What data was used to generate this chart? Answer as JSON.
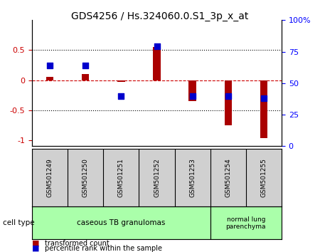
{
  "title": "GDS4256 / Hs.324060.0.S1_3p_x_at",
  "samples": [
    "GSM501249",
    "GSM501250",
    "GSM501251",
    "GSM501252",
    "GSM501253",
    "GSM501254",
    "GSM501255"
  ],
  "transformed_count": [
    0.05,
    0.1,
    -0.03,
    0.55,
    -0.35,
    -0.75,
    -0.97
  ],
  "percentile_rank": [
    0.25,
    0.25,
    -0.25,
    0.55,
    -0.3,
    -0.3,
    -0.35
  ],
  "percentile_rank_pct": [
    62,
    62,
    37,
    78,
    37,
    37,
    35
  ],
  "bar_color": "#aa0000",
  "dot_color": "#0000cc",
  "ylim_left": [
    -1.1,
    1.0
  ],
  "ylim_right": [
    0,
    100
  ],
  "yticks_left": [
    -1,
    -0.5,
    0,
    0.5
  ],
  "yticks_right": [
    0,
    25,
    50,
    75,
    100
  ],
  "ytick_labels_left": [
    "-1",
    "-0.5",
    "0",
    "0.5"
  ],
  "ytick_labels_right": [
    "0",
    "25",
    "50",
    "75",
    "100%"
  ],
  "hlines": [
    0.5,
    0,
    -0.5
  ],
  "cell_type_groups": [
    {
      "label": "caseous TB granulomas",
      "start": 0,
      "end": 5,
      "color": "#aaffaa"
    },
    {
      "label": "normal lung\nparenchyma",
      "start": 5,
      "end": 7,
      "color": "#aaffaa"
    }
  ],
  "legend_items": [
    {
      "label": "transformed count",
      "color": "#aa0000"
    },
    {
      "label": "percentile rank within the sample",
      "color": "#0000cc"
    }
  ],
  "cell_type_label": "cell type",
  "bar_width": 0.35,
  "dot_size": 40,
  "background_color": "#ffffff",
  "plot_bg": "#ffffff",
  "grid_color": "#000000",
  "dashed_color": "#cc0000"
}
